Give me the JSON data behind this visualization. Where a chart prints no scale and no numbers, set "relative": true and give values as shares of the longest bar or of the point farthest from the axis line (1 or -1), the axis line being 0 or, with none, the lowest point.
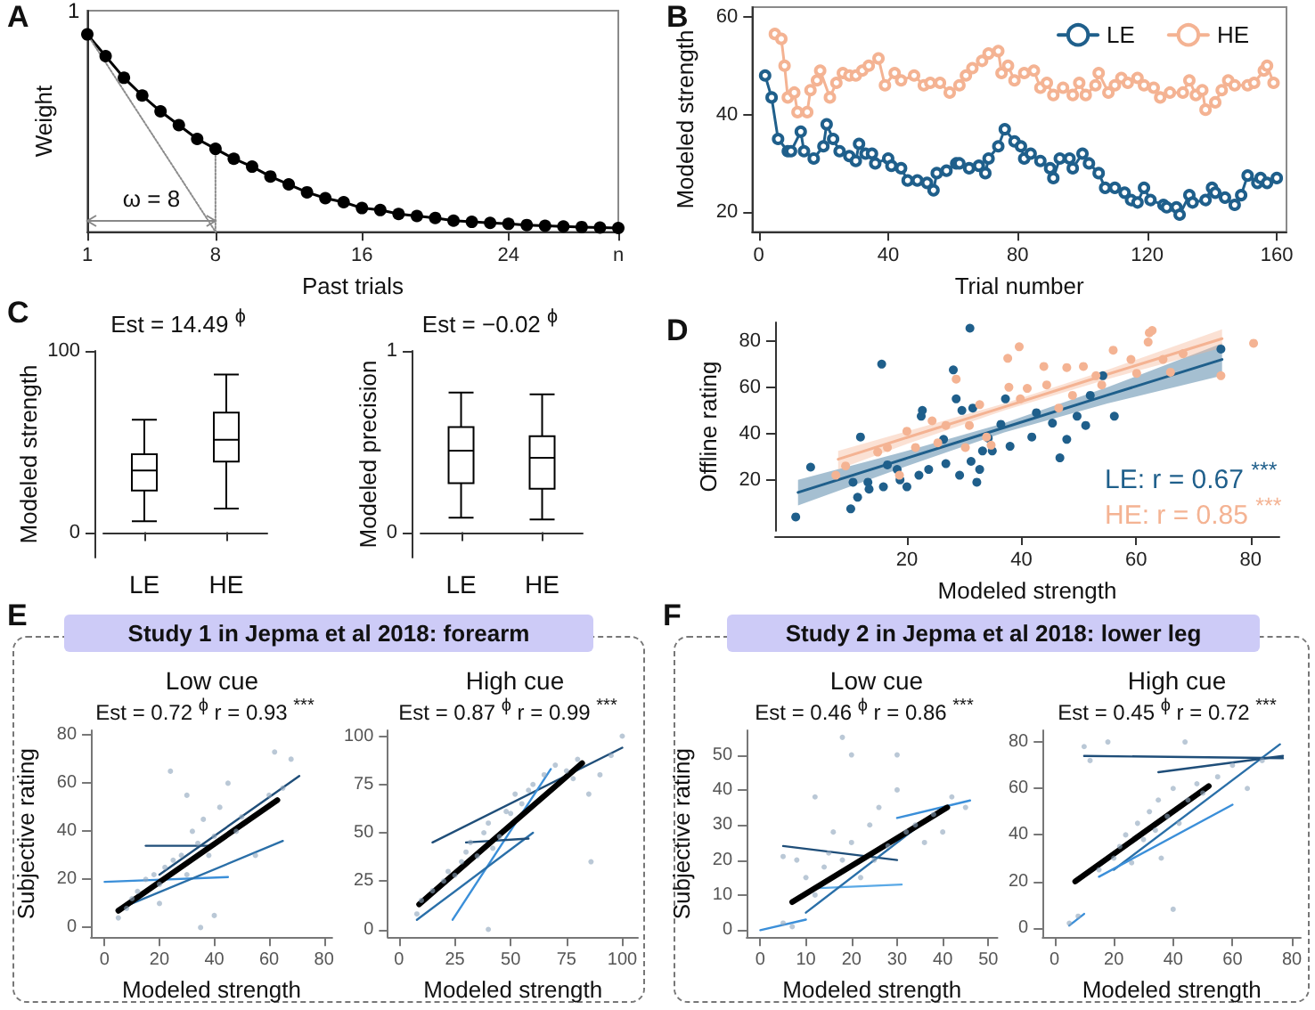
{
  "chart_data": [
    {
      "type": "line",
      "relative": true,
      "annotations": [
        "A",
        "ω = 8",
        "1"
      ],
      "xlabel": "Past trials",
      "ylabel": "Weight",
      "marker": "circle",
      "x": [
        1,
        2,
        3,
        4,
        5,
        6,
        7,
        8,
        9,
        10,
        11,
        12,
        13,
        14,
        15,
        16,
        17,
        18,
        19,
        20,
        21,
        22,
        23,
        24,
        25,
        26,
        27,
        28,
        29,
        30
      ],
      "series": [
        {
          "color": "#000000",
          "values": [
            1,
            0.89,
            0.78,
            0.69,
            0.61,
            0.54,
            0.47,
            0.42,
            0.37,
            0.33,
            0.28,
            0.24,
            0.2,
            0.17,
            0.15,
            0.12,
            0.11,
            0.09,
            0.08,
            0.07,
            0.056,
            0.05,
            0.045,
            0.04,
            0.034,
            0.03,
            0.027,
            0.024,
            0.021,
            0.019
          ]
        },
        {
          "color": "#8c8c8c",
          "x": [
            1,
            8
          ],
          "values": [
            1,
            0
          ],
          "marker": "none",
          "line_style": "dotted"
        },
        {
          "color": "#8c8c8c",
          "x": [
            8,
            8
          ],
          "values": [
            0,
            0.42
          ],
          "marker": "none",
          "line_style": "dotted"
        }
      ],
      "xlim": [
        1,
        30
      ],
      "xticks": [
        1,
        8,
        16,
        24,
        {
          "value": 30,
          "label": "n"
        }
      ]
    },
    {
      "type": "line",
      "annotations": [
        "B"
      ],
      "xlabel": "Trial number",
      "ylabel": "Modeled strength",
      "marker": "circle",
      "legend": "top right",
      "series": [
        {
          "name": "LE",
          "color": "#1f5f8b",
          "x": [
            2,
            4,
            6,
            9,
            10,
            13,
            14,
            17,
            20,
            21,
            23,
            25,
            28,
            30,
            31,
            33,
            35,
            36,
            40,
            41,
            44,
            46,
            49,
            52,
            54,
            55,
            58,
            61,
            62,
            65,
            68,
            70,
            71,
            74,
            76,
            79,
            81,
            82,
            84,
            87,
            90,
            91,
            93,
            96,
            97,
            100,
            102,
            105,
            107,
            110,
            113,
            115,
            117,
            119,
            121,
            125,
            126,
            129,
            130,
            133,
            134,
            138,
            140,
            141,
            144,
            147,
            149,
            151,
            154,
            155,
            157,
            160
          ],
          "values": [
            48,
            43.5,
            35,
            32.5,
            32.5,
            36.5,
            32.5,
            31,
            33.5,
            38,
            35,
            32.5,
            31.5,
            30.5,
            34,
            32,
            32,
            30,
            31,
            29.5,
            29,
            26.5,
            26.5,
            26,
            24.5,
            28,
            28.5,
            30,
            30,
            29,
            29.5,
            28,
            31,
            33.5,
            37,
            34.5,
            33.5,
            31,
            32,
            30.5,
            29,
            27,
            31,
            31,
            29,
            32,
            30,
            28,
            25,
            25,
            24,
            22.5,
            22,
            25,
            22.5,
            21.5,
            21,
            21,
            19.5,
            23.5,
            22,
            22.5,
            25,
            24,
            23,
            21.5,
            23.5,
            27.5,
            26,
            27,
            26,
            27
          ]
        },
        {
          "name": "HE",
          "color": "#f4b393",
          "x": [
            5,
            7,
            8,
            9,
            11,
            12,
            15,
            16,
            18,
            19,
            22,
            24,
            26,
            28,
            30,
            32,
            34,
            37,
            39,
            42,
            44,
            48,
            51,
            53,
            56,
            59,
            62,
            64,
            66,
            69,
            71,
            74,
            75,
            77,
            79,
            82,
            85,
            87,
            89,
            91,
            94,
            97,
            99,
            101,
            104,
            105,
            108,
            110,
            112,
            114,
            117,
            119,
            122,
            124,
            127,
            131,
            133,
            135,
            137,
            138,
            141,
            143,
            145,
            147,
            151,
            153,
            156,
            157,
            159
          ],
          "values": [
            56.5,
            55.5,
            50,
            43.5,
            44.5,
            40.5,
            40.5,
            45,
            47,
            49,
            43.5,
            46.5,
            48.5,
            48,
            48,
            49,
            50,
            51.5,
            46,
            48.5,
            47,
            48,
            46,
            46.5,
            46.5,
            44.5,
            46,
            48,
            49.5,
            51,
            52.5,
            53,
            48.5,
            50,
            47,
            48.5,
            49,
            45.5,
            46.5,
            44,
            45.5,
            44,
            46.5,
            44,
            46,
            48.5,
            44.5,
            46,
            47.5,
            46.5,
            47.5,
            46,
            45.5,
            43.5,
            44.5,
            44.5,
            47,
            44,
            45,
            41,
            42.5,
            45,
            47,
            46,
            46,
            46.5,
            49,
            50,
            46.5
          ]
        }
      ],
      "xlim": [
        -2,
        163
      ],
      "xticks": [
        0,
        40,
        80,
        120,
        160
      ],
      "ylim": [
        16,
        62
      ],
      "yticks": [
        20,
        40,
        60
      ]
    },
    {
      "type": "box",
      "annotations": [
        "C",
        "Est = 14.49 $^{ϕ}$"
      ],
      "ylabel": "Modeled strength",
      "categories": [
        "LE",
        "HE"
      ],
      "color": "#000000",
      "boxes": [
        {
          "low": 6,
          "q1": 23,
          "median": 34,
          "q3": 43,
          "high": 62
        },
        {
          "low": 13,
          "q1": 39,
          "median": 51,
          "q3": 66,
          "high": 87
        }
      ],
      "ylim": [
        -14,
        100
      ],
      "yticks": [
        0,
        100
      ]
    },
    {
      "type": "box",
      "annotations": [
        "Est = −0.02 $^{ϕ}$"
      ],
      "ylabel": "Modeled precision",
      "categories": [
        "LE",
        "HE"
      ],
      "color": "#000000",
      "boxes": [
        {
          "low": 0.08,
          "q1": 0.27,
          "median": 0.45,
          "q3": 0.58,
          "high": 0.77
        },
        {
          "low": 0.07,
          "q1": 0.24,
          "median": 0.41,
          "q3": 0.53,
          "high": 0.76
        }
      ],
      "ylim": [
        -0.14,
        1
      ],
      "yticks": [
        0,
        1
      ]
    },
    {
      "type": "scatter",
      "annotations": [
        "D",
        "LE: r = 0.67 $^{***}$",
        "HE: r = 0.85 $^{***}$"
      ],
      "xlabel": "Modeled strength",
      "ylabel": "Offline rating",
      "marker": "circle",
      "series": [
        {
          "color": "#1f5f8b",
          "x": [
            0.6,
            3.2,
            10.2,
            10.6,
            11.4,
            11.9,
            13.2,
            13.4,
            15.6,
            15.9,
            16.6,
            18.3,
            18.8,
            20,
            22.1,
            22.5,
            22.7,
            23.8,
            26.4,
            26.8,
            28.1,
            28.6,
            29.2,
            29.6,
            31.2,
            31.5,
            32.2,
            32.7,
            33.2,
            34.2,
            34.9,
            36.4,
            37.2,
            38,
            41.8,
            42.6,
            45.4,
            46.7,
            47.9,
            49.7,
            51.2,
            52,
            56.2,
            54.2,
            74.8,
            31
          ],
          "values": [
            4,
            25.5,
            7.5,
            19,
            12.5,
            38.5,
            19,
            16,
            70,
            17,
            26.5,
            24.5,
            20,
            17,
            22,
            47.5,
            50,
            24.5,
            37.5,
            27,
            67.5,
            55,
            22,
            50,
            28,
            51,
            19,
            24.5,
            32.5,
            38,
            32.5,
            44,
            55,
            34.5,
            38.5,
            49,
            44.5,
            29.5,
            37.5,
            47.5,
            43.5,
            56.5,
            47.5,
            65,
            76.5,
            85.5
          ]
        },
        {
          "color": "#f4b393",
          "x": [
            7.6,
            9.3,
            14.9,
            16.6,
            18.7,
            20,
            21.5,
            24.4,
            25.4,
            26.8,
            28.6,
            30.2,
            30.9,
            32.7,
            33.9,
            34.7,
            37.6,
            37.8,
            39.6,
            39.8,
            41,
            43.9,
            44.4,
            46.5,
            47.9,
            48.9,
            50.8,
            53,
            54,
            56,
            59.1,
            60.1,
            62.1,
            64.7,
            66,
            68.2,
            74.8,
            80.5,
            62.3,
            62.8
          ],
          "values": [
            22,
            26,
            32,
            34,
            22,
            41,
            34,
            45.5,
            36,
            43.5,
            63.5,
            34,
            43.5,
            52.5,
            38.5,
            35,
            72.5,
            60,
            77.5,
            55,
            59.5,
            69,
            61,
            51,
            68.5,
            56.5,
            69,
            65,
            61,
            76,
            72,
            66,
            79.5,
            72,
            66.5,
            74.5,
            65,
            79,
            83.5,
            84.5
          ]
        },
        {
          "type": "line",
          "marker": "none",
          "color": "#1f5f8b",
          "x": [
            1,
            20,
            37,
            55,
            75
          ],
          "values": [
            14.6,
            29.4,
            42.6,
            56.6,
            72
          ],
          "lower": [
            9,
            26,
            40.5,
            53,
            65
          ],
          "upper": [
            20,
            32.5,
            44.5,
            60,
            79
          ]
        },
        {
          "type": "line",
          "marker": "none",
          "color": "#f4b393",
          "x": [
            8,
            20,
            37,
            55,
            75
          ],
          "values": [
            28.9,
            38.3,
            51.5,
            65.6,
            81
          ],
          "lower": [
            24.5,
            35.5,
            50,
            63.5,
            77
          ],
          "upper": [
            32.5,
            41,
            53,
            67.5,
            85
          ]
        }
      ],
      "xlim": [
        -3,
        85
      ],
      "xticks": [
        20,
        40,
        60,
        80
      ],
      "ylim": [
        -2,
        88
      ],
      "yticks": [
        20,
        40,
        60,
        80
      ]
    },
    {
      "type": "scatter",
      "title": "Low cue",
      "annotations": [
        "E",
        "Study 1 in Jepma et al 2018: forearm",
        "Est = 0.72 $^{ϕ}$ r = 0.93 $^{***}$"
      ],
      "xlabel": "Modeled strength",
      "ylabel": "Subjective rating",
      "marker": "circle",
      "series": [
        {
          "color": "#8ca3ba",
          "x": [
            5,
            8,
            10,
            12,
            15,
            18,
            20,
            22,
            24,
            25,
            28,
            30,
            32,
            34,
            36,
            38,
            40,
            42,
            45,
            48,
            50,
            55,
            60,
            62,
            65,
            68,
            40,
            35,
            20,
            30
          ],
          "values": [
            4,
            8,
            12,
            15,
            20,
            22,
            18,
            25,
            65,
            28,
            30,
            22,
            40,
            35,
            45,
            30,
            38,
            50,
            60,
            40,
            46,
            30,
            55,
            73,
            58,
            70,
            5,
            0,
            10,
            55
          ]
        },
        {
          "type": "line",
          "marker": "none",
          "color": "#3b8fd9",
          "x": [
            0,
            45
          ],
          "values": [
            19,
            21
          ]
        },
        {
          "type": "line",
          "marker": "none",
          "color": "#1f4e79",
          "x": [
            15,
            40
          ],
          "values": [
            34,
            34
          ]
        },
        {
          "type": "line",
          "marker": "none",
          "color": "#2a6fa8",
          "x": [
            10,
            65
          ],
          "values": [
            10,
            36
          ]
        },
        {
          "type": "line",
          "marker": "none",
          "color": "#1f4e79",
          "x": [
            20,
            71
          ],
          "values": [
            22,
            63
          ]
        },
        {
          "type": "line",
          "marker": "none",
          "color": "#000000",
          "x": [
            5,
            63
          ],
          "values": [
            7,
            53
          ]
        }
      ],
      "xlim": [
        -5,
        83
      ],
      "xticks": [
        0,
        20,
        40,
        60,
        80
      ],
      "ylim": [
        -4,
        82
      ],
      "yticks": [
        0,
        20,
        40,
        60,
        80
      ]
    },
    {
      "type": "scatter",
      "title": "High cue",
      "annotations": [
        "Est = 0.87 $^{ϕ}$ r = 0.99 $^{***}$"
      ],
      "xlabel": "Modeled strength",
      "marker": "circle",
      "series": [
        {
          "color": "#8ca3ba",
          "x": [
            8,
            10,
            15,
            20,
            22,
            25,
            28,
            30,
            32,
            35,
            38,
            40,
            42,
            45,
            48,
            50,
            52,
            55,
            58,
            60,
            65,
            70,
            75,
            78,
            80,
            85,
            90,
            95,
            100,
            40,
            86
          ],
          "values": [
            8,
            15,
            20,
            25,
            30,
            28,
            35,
            40,
            45,
            38,
            50,
            55,
            42,
            48,
            61,
            60,
            70,
            65,
            72,
            75,
            80,
            85,
            82,
            78,
            88,
            70,
            80,
            90,
            100,
            0,
            35
          ]
        },
        {
          "type": "line",
          "marker": "none",
          "color": "#1f4e79",
          "x": [
            15,
            100
          ],
          "values": [
            45,
            94
          ]
        },
        {
          "type": "line",
          "marker": "none",
          "color": "#3b8fd9",
          "x": [
            24,
            68
          ],
          "values": [
            5,
            83
          ]
        },
        {
          "type": "line",
          "marker": "none",
          "color": "#2a6fa8",
          "x": [
            8,
            60
          ],
          "values": [
            5,
            50
          ]
        },
        {
          "type": "line",
          "marker": "none",
          "color": "#1f4e79",
          "x": [
            30,
            58
          ],
          "values": [
            45,
            47
          ]
        },
        {
          "type": "line",
          "marker": "none",
          "color": "#000000",
          "x": [
            9,
            82
          ],
          "values": [
            13,
            86
          ]
        }
      ],
      "xlim": [
        -5,
        107
      ],
      "xticks": [
        0,
        25,
        50,
        75,
        100
      ],
      "ylim": [
        -4,
        103
      ],
      "yticks": [
        0,
        25,
        50,
        75,
        100
      ]
    },
    {
      "type": "scatter",
      "title": "Low cue",
      "annotations": [
        "F",
        "Study 2 in Jepma et al 2018: lower leg",
        "Est = 0.46 $^{ϕ}$ r = 0.86 $^{***}$"
      ],
      "xlabel": "Modeled strength",
      "ylabel": "Subjective rating",
      "marker": "circle",
      "series": [
        {
          "color": "#8ca3ba",
          "x": [
            5,
            7,
            5,
            8,
            10,
            12,
            14,
            15,
            16,
            18,
            20,
            20,
            22,
            24,
            25,
            26,
            28,
            30,
            30,
            32,
            34,
            36,
            38,
            40,
            42,
            45,
            18,
            12
          ],
          "values": [
            2,
            1,
            21,
            20,
            15,
            10,
            18,
            22,
            28,
            20,
            25,
            50,
            15,
            30,
            20,
            35,
            24,
            40,
            50,
            28,
            30,
            25,
            33,
            28,
            38,
            35,
            55,
            38
          ]
        },
        {
          "type": "line",
          "marker": "none",
          "color": "#3b8fd9",
          "x": [
            0,
            10
          ],
          "values": [
            0,
            3
          ]
        },
        {
          "type": "line",
          "marker": "none",
          "color": "#1f4e79",
          "x": [
            5,
            30
          ],
          "values": [
            24,
            20
          ]
        },
        {
          "type": "line",
          "marker": "none",
          "color": "#5aa9e6",
          "x": [
            13,
            31
          ],
          "values": [
            12,
            13
          ]
        },
        {
          "type": "line",
          "marker": "none",
          "color": "#2a6fa8",
          "x": [
            10,
            40
          ],
          "values": [
            5,
            35
          ]
        },
        {
          "type": "line",
          "marker": "none",
          "color": "#3b8fd9",
          "x": [
            30,
            46
          ],
          "values": [
            32,
            37
          ]
        },
        {
          "type": "line",
          "marker": "none",
          "color": "#000000",
          "x": [
            7,
            41
          ],
          "values": [
            8,
            35
          ]
        }
      ],
      "xlim": [
        -3,
        52
      ],
      "xticks": [
        0,
        10,
        20,
        30,
        40,
        50
      ],
      "ylim": [
        -2,
        57
      ],
      "yticks": [
        0,
        10,
        20,
        30,
        40,
        50
      ]
    },
    {
      "type": "scatter",
      "title": "High cue",
      "annotations": [
        "Est = 0.45 $^{ϕ}$ r = 0.72 $^{***}$"
      ],
      "xlabel": "Modeled strength",
      "marker": "circle",
      "series": [
        {
          "color": "#8ca3ba",
          "x": [
            5,
            8,
            10,
            12,
            15,
            18,
            20,
            22,
            24,
            26,
            28,
            30,
            32,
            34,
            35,
            36,
            38,
            40,
            42,
            44,
            45,
            48,
            50,
            55,
            60,
            65,
            70,
            40
          ],
          "values": [
            2,
            5,
            78,
            72,
            25,
            80,
            30,
            35,
            40,
            28,
            45,
            38,
            50,
            42,
            55,
            30,
            48,
            60,
            45,
            80,
            55,
            62,
            58,
            65,
            70,
            60,
            72,
            8
          ]
        },
        {
          "type": "line",
          "marker": "none",
          "color": "#1f4e79",
          "x": [
            10,
            77
          ],
          "values": [
            74,
            73
          ]
        },
        {
          "type": "line",
          "marker": "none",
          "color": "#3b8fd9",
          "x": [
            5,
            10
          ],
          "values": [
            1,
            6
          ]
        },
        {
          "type": "line",
          "marker": "none",
          "color": "#2a6fa8",
          "x": [
            20,
            76
          ],
          "values": [
            25,
            79
          ]
        },
        {
          "type": "line",
          "marker": "none",
          "color": "#3b8fd9",
          "x": [
            15,
            60
          ],
          "values": [
            22,
            53
          ]
        },
        {
          "type": "line",
          "marker": "none",
          "color": "#1f4e79",
          "x": [
            35,
            77
          ],
          "values": [
            67,
            74
          ]
        },
        {
          "type": "line",
          "marker": "none",
          "color": "#000000",
          "x": [
            7,
            52
          ],
          "values": [
            20,
            61
          ]
        }
      ],
      "xlim": [
        -4,
        83
      ],
      "xticks": [
        0,
        20,
        40,
        60,
        80
      ],
      "ylim": [
        -4,
        85
      ],
      "yticks": [
        0,
        20,
        40,
        60,
        80
      ]
    }
  ]
}
